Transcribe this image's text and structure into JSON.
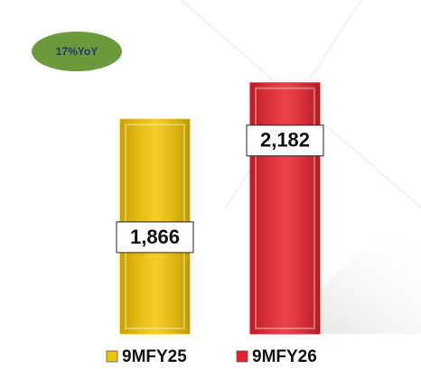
{
  "chart_data": {
    "type": "bar",
    "annotation": "17%YoY",
    "categories": [
      "9MFY25",
      "9MFY26"
    ],
    "values": [
      1866,
      2182
    ],
    "value_labels": [
      "1,866",
      "2,182"
    ],
    "colors": [
      "#f5c400",
      "#e8202a"
    ],
    "ylim": [
      0,
      2400
    ]
  }
}
